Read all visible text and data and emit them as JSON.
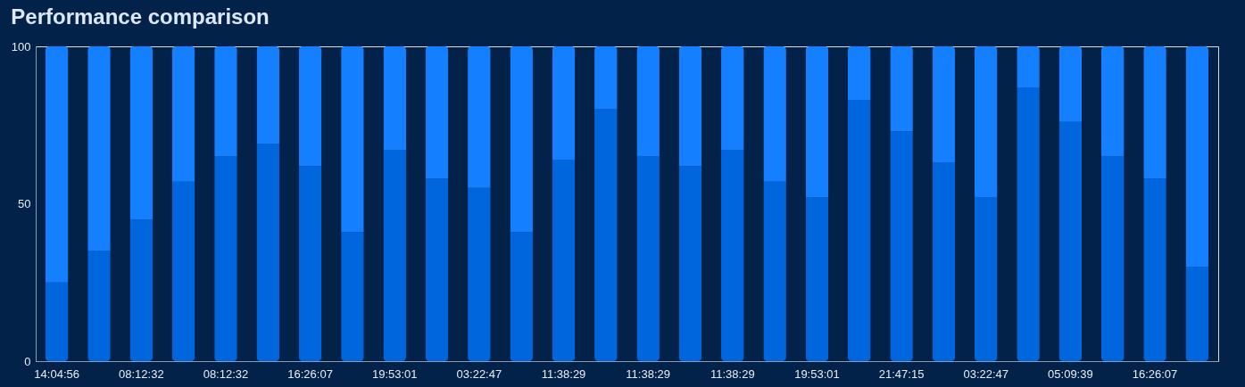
{
  "chart_data": {
    "type": "bar",
    "title": "Performance comparison",
    "stacked": true,
    "categories": [
      "14:04:56",
      null,
      "08:12:32",
      null,
      "08:12:32",
      null,
      "16:26:07",
      null,
      "19:53:01",
      null,
      "03:22:47",
      null,
      "11:38:29",
      null,
      "11:38:29",
      null,
      "11:38:29",
      null,
      "19:53:01",
      null,
      "21:47:15",
      null,
      "03:22:47",
      null,
      "05:09:39",
      null,
      "16:26:07",
      null
    ],
    "series": [
      {
        "color": "#0066dd",
        "values": [
          25,
          35,
          45,
          57,
          65,
          69,
          62,
          41,
          67,
          58,
          55,
          41,
          64,
          80,
          65,
          62,
          67,
          57,
          52,
          83,
          73,
          63,
          52,
          87,
          76,
          65,
          58,
          30
        ]
      },
      {
        "color": "#1580ff",
        "values": [
          75,
          65,
          55,
          43,
          35,
          31,
          38,
          59,
          33,
          42,
          45,
          59,
          36,
          20,
          35,
          38,
          33,
          43,
          48,
          17,
          27,
          37,
          48,
          13,
          24,
          35,
          42,
          70
        ]
      }
    ],
    "ylim": [
      0,
      100
    ],
    "yticks": [
      0,
      50,
      100
    ],
    "grid": false,
    "legend": false
  }
}
